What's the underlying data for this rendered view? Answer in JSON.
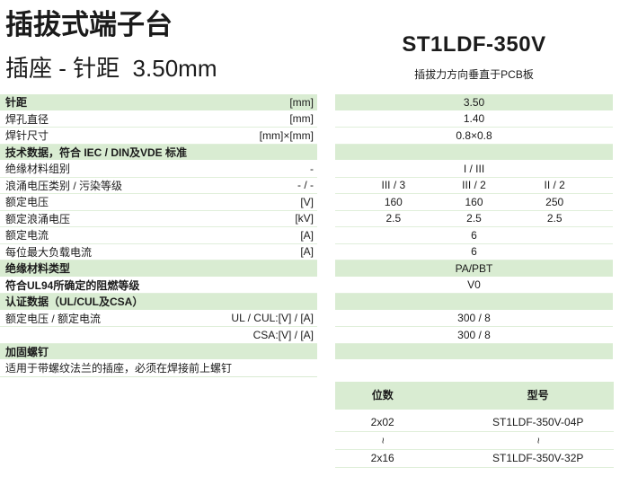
{
  "header": {
    "title": "插拔式端子台",
    "subtitle": "插座 - 针距  3.50mm"
  },
  "product": {
    "model": "ST1LDF-350V",
    "note": "插拔力方向垂直于PCB板"
  },
  "colors": {
    "accent_green": "#d9ecd2",
    "separator_green": "#e0efda",
    "text": "#1b1b1b"
  },
  "spec_table": {
    "rows": [
      {
        "label": "针距",
        "unit": "[mm]",
        "values": [
          "3.50"
        ],
        "style": "green",
        "bold": true
      },
      {
        "label": "焊孔直径",
        "unit": "[mm]",
        "values": [
          "1.40"
        ],
        "style": "normal",
        "bold": false
      },
      {
        "label": "焊针尺寸",
        "unit": "[mm]×[mm]",
        "values": [
          "0.8×0.8"
        ],
        "style": "normal",
        "bold": false
      },
      {
        "label": "技术数据，符合 IEC / DIN及VDE 标准",
        "unit": "",
        "values": [],
        "style": "green",
        "bold": true
      },
      {
        "label": "绝缘材料组别",
        "unit": "-",
        "values": [
          "I / III"
        ],
        "style": "normal",
        "bold": false
      },
      {
        "label": "浪涌电压类别 / 污染等级",
        "unit": "- / -",
        "values": [
          "III / 3",
          "III / 2",
          "II / 2"
        ],
        "style": "normal",
        "bold": false
      },
      {
        "label": "额定电压",
        "unit": "[V]",
        "values": [
          "160",
          "160",
          "250"
        ],
        "style": "normal",
        "bold": false
      },
      {
        "label": "额定浪涌电压",
        "unit": "[kV]",
        "values": [
          "2.5",
          "2.5",
          "2.5"
        ],
        "style": "normal",
        "bold": false
      },
      {
        "label": "额定电流",
        "unit": "[A]",
        "values": [
          "6"
        ],
        "style": "normal",
        "bold": false
      },
      {
        "label": "每位最大负载电流",
        "unit": "[A]",
        "values": [
          "6"
        ],
        "style": "normal",
        "bold": false
      },
      {
        "label": "绝缘材料类型",
        "unit": "",
        "values": [
          "PA/PBT"
        ],
        "style": "green",
        "bold": true
      },
      {
        "label": "符合UL94所确定的阻燃等级",
        "unit": "",
        "values": [
          "V0"
        ],
        "style": "normal",
        "bold": true
      },
      {
        "label": "认证数据（UL/CUL及CSA）",
        "unit": "",
        "values": [],
        "style": "green",
        "bold": true
      },
      {
        "label": "额定电压 / 额定电流",
        "unit": "UL / CUL:[V] / [A]",
        "values": [
          "300 / 8"
        ],
        "style": "normal",
        "bold": false
      },
      {
        "label": "",
        "unit": "CSA:[V] / [A]",
        "values": [
          "300 / 8"
        ],
        "style": "normal",
        "bold": false
      },
      {
        "label": "加固螺钉",
        "unit": "",
        "values": [],
        "style": "green",
        "bold": true
      },
      {
        "label": "适用于带螺纹法兰的插座，必须在焊接前上螺钉",
        "unit": "",
        "values": [],
        "style": "note",
        "bold": false
      }
    ]
  },
  "order_table": {
    "headers": [
      "位数",
      "型号"
    ],
    "rows": [
      [
        "2x02",
        "ST1LDF-350V-04P"
      ],
      [
        "~",
        "~"
      ],
      [
        "2x16",
        "ST1LDF-350V-32P"
      ]
    ]
  }
}
